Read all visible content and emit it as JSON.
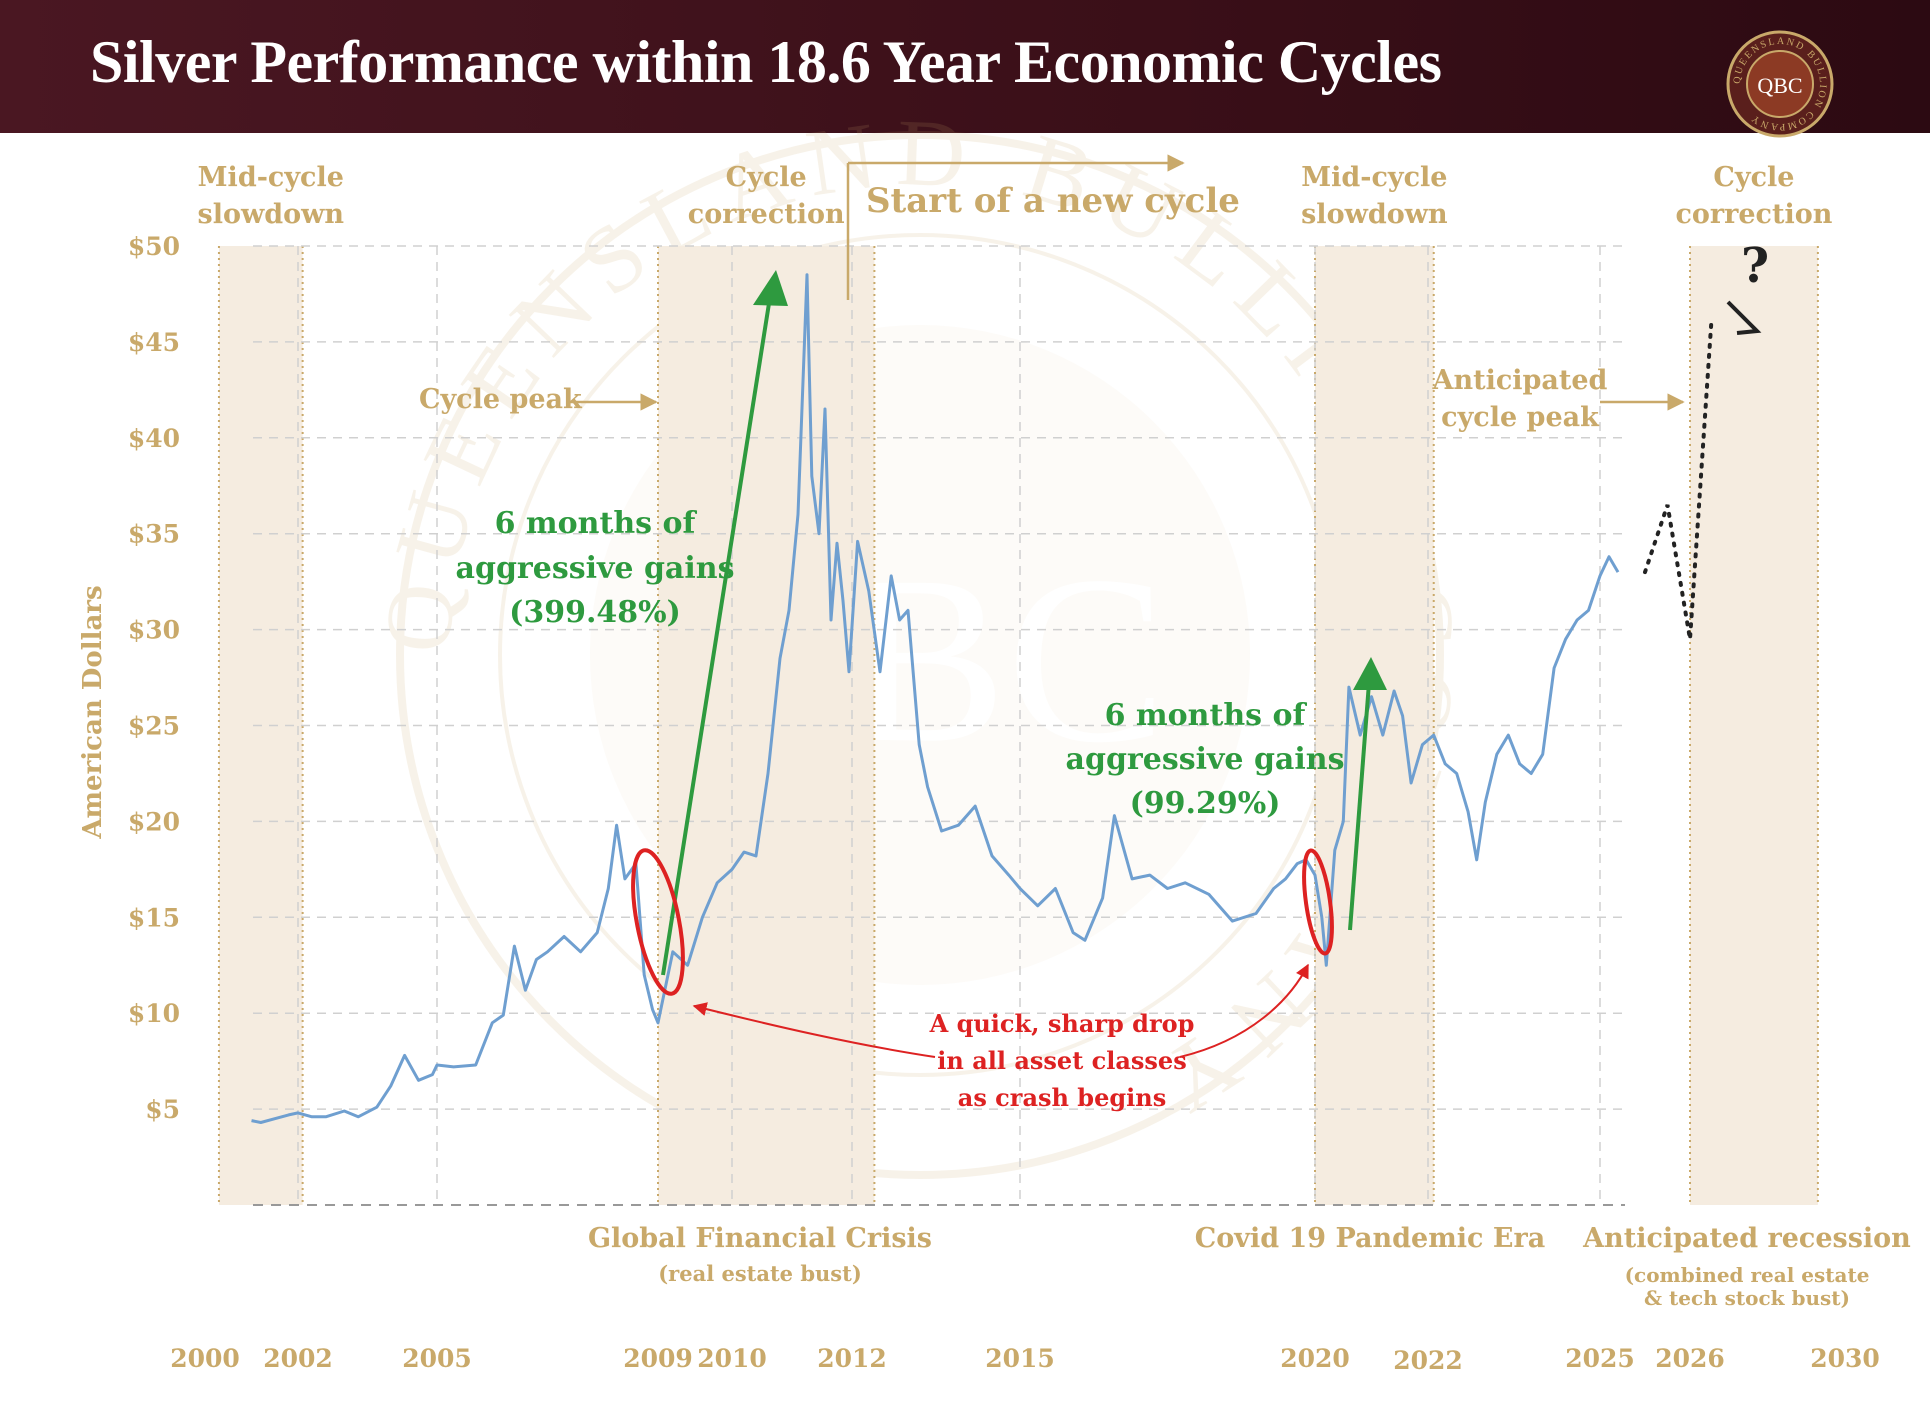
{
  "header": {
    "title": "Silver Performance within 18.6 Year Economic Cycles",
    "logo_text": "QBC",
    "logo_ring_text": "QUEENSLAND BULLION COMPANY",
    "background_color": "#3d0f18"
  },
  "watermark": {
    "text": "QBC",
    "ring_text": "QUEENSLAND BULLION COMPANY"
  },
  "colors": {
    "gold": "#c9a96a",
    "band": "#f5ece0",
    "series": "#6f9fd0",
    "green": "#2e9a3f",
    "red": "#dd2222",
    "dark": "#222222"
  },
  "chart_data": {
    "type": "line",
    "ylabel": "American Dollars",
    "y_ticks": [
      "$5",
      "$10",
      "$15",
      "$20",
      "$25",
      "$30",
      "$35",
      "$40",
      "$45",
      "$50"
    ],
    "ylim": [
      0,
      50
    ],
    "x_ticks": [
      "2000",
      "2002",
      "2005",
      "2009",
      "2010",
      "2012",
      "2015",
      "2020",
      "2022",
      "2025",
      "2026",
      "2030"
    ],
    "xlim": [
      2000,
      2030
    ],
    "grid": true,
    "series": [
      {
        "x": [
          2001.0,
          2001.2,
          2001.5,
          2001.8,
          2002.0,
          2002.3,
          2002.6,
          2003.0,
          2003.3,
          2003.7,
          2004.0,
          2004.3,
          2004.6,
          2004.9,
          2005.0,
          2005.3,
          2005.7,
          2006.0,
          2006.2,
          2006.4,
          2006.6,
          2006.8,
          2007.0,
          2007.3,
          2007.6,
          2007.9,
          2008.1,
          2008.25,
          2008.4,
          2008.6,
          2008.75,
          2008.9,
          2009.0,
          2009.2,
          2009.4,
          2009.6,
          2009.8,
          2010.0,
          2010.2,
          2010.4,
          2010.6,
          2010.8,
          2010.95,
          2011.1,
          2011.25,
          2011.33,
          2011.45,
          2011.55,
          2011.65,
          2011.75,
          2011.85,
          2011.95,
          2012.1,
          2012.3,
          2012.5,
          2012.7,
          2012.85,
          2013.0,
          2013.2,
          2013.35,
          2013.6,
          2013.9,
          2014.2,
          2014.5,
          2014.8,
          2015.0,
          2015.3,
          2015.6,
          2015.9,
          2016.1,
          2016.4,
          2016.6,
          2016.9,
          2017.2,
          2017.5,
          2017.8,
          2018.2,
          2018.6,
          2019.0,
          2019.3,
          2019.5,
          2019.7,
          2019.85,
          2020.0,
          2020.12,
          2020.2,
          2020.35,
          2020.5,
          2020.6,
          2020.8,
          2021.0,
          2021.2,
          2021.4,
          2021.55,
          2021.7,
          2021.9,
          2022.1,
          2022.3,
          2022.5,
          2022.7,
          2022.85,
          2023.0,
          2023.2,
          2023.4,
          2023.6,
          2023.8,
          2024.0,
          2024.2,
          2024.4,
          2024.6,
          2024.8,
          2025.0,
          2025.1,
          2025.2
        ],
        "values": [
          4.4,
          4.3,
          4.5,
          4.7,
          4.8,
          4.6,
          4.6,
          4.9,
          4.6,
          5.1,
          6.2,
          7.8,
          6.5,
          6.8,
          7.3,
          7.2,
          7.3,
          9.5,
          9.9,
          13.5,
          11.2,
          12.8,
          13.2,
          14.0,
          13.2,
          14.2,
          16.5,
          19.8,
          17.0,
          17.8,
          12.0,
          10.2,
          9.5,
          13.2,
          12.5,
          15.0,
          16.8,
          17.5,
          18.4,
          18.2,
          22.5,
          28.5,
          31.0,
          36.0,
          48.5,
          38.0,
          35.0,
          41.5,
          30.5,
          34.5,
          31.5,
          27.8,
          34.6,
          32.0,
          27.8,
          32.8,
          30.5,
          31.0,
          24.0,
          21.8,
          19.5,
          19.8,
          20.8,
          18.2,
          17.2,
          16.5,
          15.6,
          16.5,
          14.2,
          13.8,
          16.0,
          20.3,
          17.0,
          17.2,
          16.5,
          16.8,
          16.2,
          14.8,
          15.2,
          16.5,
          17.0,
          17.8,
          18.0,
          17.2,
          15.0,
          12.5,
          18.5,
          20.0,
          27.0,
          24.5,
          26.5,
          24.5,
          26.8,
          25.5,
          22.0,
          24.0,
          24.5,
          23.0,
          22.5,
          20.5,
          18.0,
          21.0,
          23.5,
          24.5,
          23.0,
          22.5,
          23.5,
          28.0,
          29.5,
          30.5,
          31.0,
          32.8,
          33.8,
          33.0
        ]
      }
    ],
    "projection": {
      "x": [
        2025.5,
        2025.75,
        2026.0,
        2026.55
      ],
      "values": [
        33.0,
        36.5,
        29.5,
        46.0
      ]
    },
    "bands": [
      {
        "start": 2000.3,
        "end": 2002.1,
        "label": "Mid-cycle slowdown"
      },
      {
        "start": 2009.0,
        "end": 2012.4,
        "label": "Cycle correction"
      },
      {
        "start": 2020.0,
        "end": 2022.1,
        "label": "Mid-cycle slowdown"
      },
      {
        "start": 2026.0,
        "end": 2029.3,
        "label": "Cycle correction"
      }
    ],
    "annotations": {
      "cycle_peak": "Cycle peak",
      "anticipated_peak_1": "Anticipated",
      "anticipated_peak_2": "cycle peak",
      "new_cycle": "Start of a new cycle",
      "gain1_line1": "6 months of",
      "gain1_line2": "aggressive gains",
      "gain1_line3": "(399.48%)",
      "gain2_line1": "6 months of",
      "gain2_line2": "aggressive gains",
      "gain2_line3": "(99.29%)",
      "drop_line1": "A quick, sharp drop",
      "drop_line2": "in all asset classes",
      "drop_line3": "as crash begins",
      "question": "?",
      "gfc": "Global Financial Crisis",
      "gfc_sub": "(real estate bust)",
      "covid": "Covid 19 Pandemic Era",
      "recession": "Anticipated recession",
      "recession_sub1": "(combined real estate",
      "recession_sub2": "& tech stock bust)"
    }
  }
}
